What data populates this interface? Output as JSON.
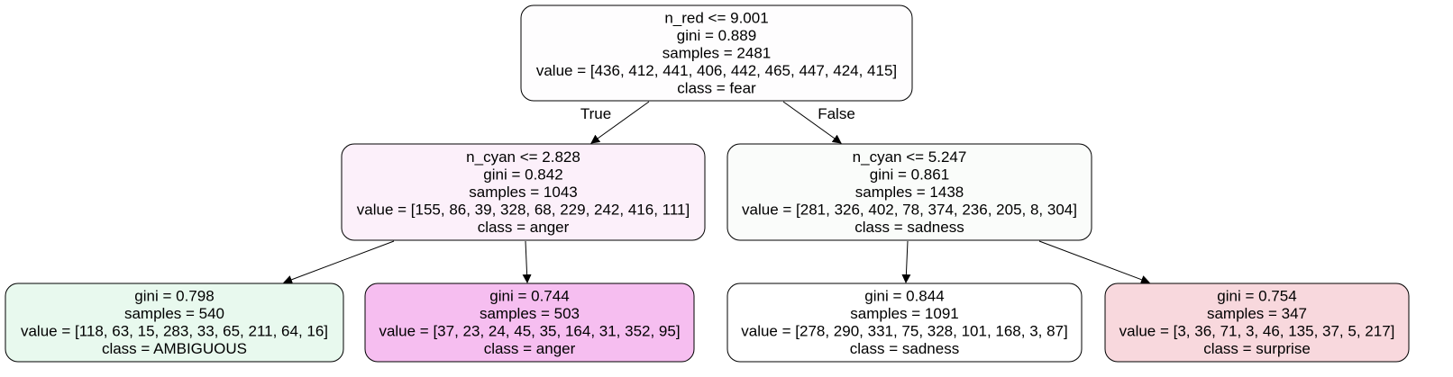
{
  "tree": {
    "nodes": [
      {
        "id": "root",
        "lines": [
          "n_red <= 9.001",
          "gini = 0.889",
          "samples = 2481",
          "value = [436, 412, 441, 406, 442, 465, 447, 424, 415]",
          "class = fear"
        ],
        "fill": "#fefdfe"
      },
      {
        "id": "left",
        "lines": [
          "n_cyan <= 2.828",
          "gini = 0.842",
          "samples = 1043",
          "value = [155, 86, 39, 328, 68, 229, 242, 416, 111]",
          "class = anger"
        ],
        "fill": "#fcf0fa"
      },
      {
        "id": "right",
        "lines": [
          "n_cyan <= 5.247",
          "gini = 0.861",
          "samples = 1438",
          "value = [281, 326, 402, 78, 374, 236, 205, 8, 304]",
          "class = sadness"
        ],
        "fill": "#fafcfa"
      },
      {
        "id": "left-left",
        "lines": [
          "gini = 0.798",
          "samples = 540",
          "value = [118, 63, 15, 283, 33, 65, 211, 64, 16]",
          "class = AMBIGUOUS"
        ],
        "fill": "#e8f9ee"
      },
      {
        "id": "left-right",
        "lines": [
          "gini = 0.744",
          "samples = 503",
          "value = [37, 23, 24, 45, 35, 164, 31, 352, 95]",
          "class = anger"
        ],
        "fill": "#f6bef0"
      },
      {
        "id": "right-left",
        "lines": [
          "gini = 0.844",
          "samples = 1091",
          "value = [278, 290, 331, 75, 328, 101, 168, 3, 87]",
          "class = sadness"
        ],
        "fill": "#ffffff"
      },
      {
        "id": "right-right",
        "lines": [
          "gini = 0.754",
          "samples = 347",
          "value = [3, 36, 71, 3, 46, 135, 37, 5, 217]",
          "class = surprise"
        ],
        "fill": "#f8d8dd"
      }
    ],
    "edges": [
      {
        "from": "root",
        "to": "left",
        "label": "True"
      },
      {
        "from": "root",
        "to": "right",
        "label": "False"
      },
      {
        "from": "left",
        "to": "left-left",
        "label": ""
      },
      {
        "from": "left",
        "to": "left-right",
        "label": ""
      },
      {
        "from": "right",
        "to": "right-left",
        "label": ""
      },
      {
        "from": "right",
        "to": "right-right",
        "label": ""
      }
    ],
    "stroke_color": "#000000"
  }
}
